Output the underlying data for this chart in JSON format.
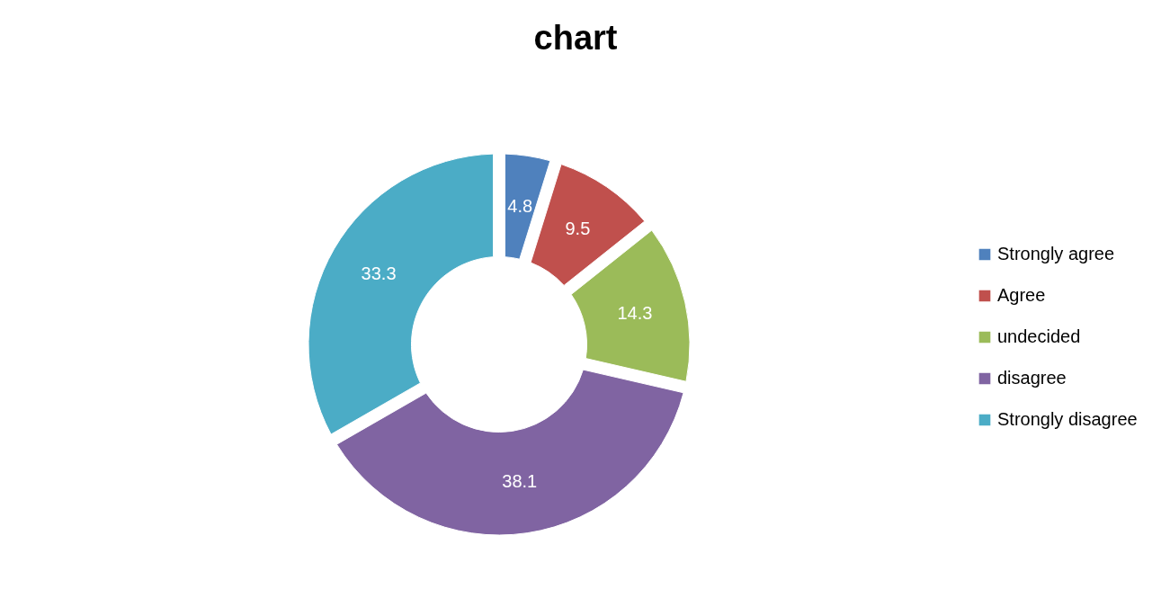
{
  "chart_data": {
    "type": "donut",
    "title": "chart",
    "categories": [
      "Strongly agree",
      "Agree",
      "undecided",
      "disagree",
      "Strongly disagree"
    ],
    "values": [
      4.8,
      9.5,
      14.3,
      38.1,
      33.3
    ],
    "colors": [
      "#4f81bd",
      "#c0504d",
      "#9bbb59",
      "#8064a2",
      "#4bacc6"
    ],
    "data_labels": true,
    "legend": "right"
  }
}
